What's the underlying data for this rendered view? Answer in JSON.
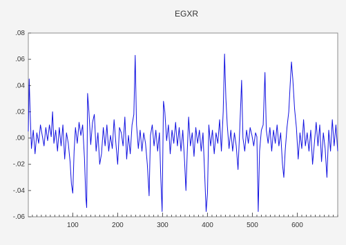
{
  "chart_data": {
    "type": "line",
    "title": "EGXR",
    "xlabel": "",
    "ylabel": "",
    "xlim": [
      1,
      690
    ],
    "ylim": [
      -0.06,
      0.08
    ],
    "grid": false,
    "legend": "none",
    "x_ticks": [
      100,
      200,
      300,
      400,
      500,
      600
    ],
    "x_tick_labels": [
      "100",
      "200",
      "300",
      "400",
      "500",
      "600"
    ],
    "y_ticks": [
      0.08,
      0.06,
      0.04,
      0.02,
      0.0,
      -0.02,
      -0.04,
      -0.06
    ],
    "y_tick_labels": [
      ".08",
      ".06",
      ".04",
      ".02",
      ".00",
      "-.02",
      "-.04",
      "-.06"
    ],
    "series": [
      {
        "color": "#1010e0",
        "points": [
          [
            1,
            0.005
          ],
          [
            3,
            0.045
          ],
          [
            5,
            0.02
          ],
          [
            8,
            -0.008
          ],
          [
            12,
            0.006
          ],
          [
            16,
            -0.012
          ],
          [
            20,
            0.004
          ],
          [
            24,
            -0.004
          ],
          [
            28,
            0.01
          ],
          [
            32,
            0.002
          ],
          [
            36,
            -0.006
          ],
          [
            40,
            0.008
          ],
          [
            44,
            -0.002
          ],
          [
            48,
            0.01
          ],
          [
            52,
            0.001
          ],
          [
            55,
            0.02
          ],
          [
            58,
            -0.004
          ],
          [
            62,
            0.006
          ],
          [
            66,
            -0.01
          ],
          [
            70,
            0.008
          ],
          [
            74,
            -0.006
          ],
          [
            78,
            0.01
          ],
          [
            82,
            -0.016
          ],
          [
            86,
            0.004
          ],
          [
            90,
            -0.004
          ],
          [
            94,
            -0.018
          ],
          [
            97,
            -0.035
          ],
          [
            100,
            -0.042
          ],
          [
            103,
            -0.01
          ],
          [
            106,
            0.008
          ],
          [
            110,
            -0.004
          ],
          [
            114,
            0.012
          ],
          [
            118,
            0.002
          ],
          [
            122,
            0.01
          ],
          [
            126,
            -0.015
          ],
          [
            129,
            -0.045
          ],
          [
            131,
            -0.053
          ],
          [
            133,
            0.034
          ],
          [
            136,
            0.02
          ],
          [
            140,
            -0.005
          ],
          [
            144,
            0.012
          ],
          [
            148,
            0.018
          ],
          [
            152,
            -0.01
          ],
          [
            156,
            0.004
          ],
          [
            160,
            -0.02
          ],
          [
            164,
            -0.012
          ],
          [
            168,
            0.008
          ],
          [
            172,
            -0.006
          ],
          [
            176,
            0.01
          ],
          [
            180,
            -0.01
          ],
          [
            184,
            0.002
          ],
          [
            188,
            -0.008
          ],
          [
            192,
            0.014
          ],
          [
            196,
            -0.004
          ],
          [
            200,
            -0.02
          ],
          [
            204,
            0.008
          ],
          [
            208,
            0.004
          ],
          [
            212,
            -0.006
          ],
          [
            216,
            0.016
          ],
          [
            220,
            -0.016
          ],
          [
            224,
            0.002
          ],
          [
            228,
            -0.012
          ],
          [
            232,
            0.01
          ],
          [
            236,
            0.018
          ],
          [
            239,
            0.063
          ],
          [
            242,
            0.01
          ],
          [
            246,
            -0.008
          ],
          [
            250,
            0.006
          ],
          [
            254,
            -0.01
          ],
          [
            258,
            0.004
          ],
          [
            262,
            -0.004
          ],
          [
            266,
            -0.02
          ],
          [
            270,
            -0.044
          ],
          [
            273,
            0.002
          ],
          [
            277,
            0.01
          ],
          [
            281,
            -0.006
          ],
          [
            285,
            0.006
          ],
          [
            289,
            -0.01
          ],
          [
            293,
            0.004
          ],
          [
            296,
            -0.03
          ],
          [
            299,
            -0.056
          ],
          [
            302,
            0.028
          ],
          [
            305,
            0.02
          ],
          [
            309,
            -0.002
          ],
          [
            313,
            0.01
          ],
          [
            317,
            -0.012
          ],
          [
            321,
            0.006
          ],
          [
            325,
            -0.004
          ],
          [
            329,
            0.012
          ],
          [
            333,
            -0.006
          ],
          [
            337,
            0.008
          ],
          [
            341,
            -0.01
          ],
          [
            345,
            0.006
          ],
          [
            349,
            -0.018
          ],
          [
            352,
            -0.04
          ],
          [
            355,
            -0.01
          ],
          [
            358,
            0.016
          ],
          [
            362,
            -0.006
          ],
          [
            366,
            0.004
          ],
          [
            370,
            -0.014
          ],
          [
            374,
            0.008
          ],
          [
            378,
            -0.004
          ],
          [
            382,
            0.006
          ],
          [
            386,
            -0.01
          ],
          [
            390,
            0.004
          ],
          [
            394,
            -0.03
          ],
          [
            397,
            -0.056
          ],
          [
            400,
            -0.042
          ],
          [
            403,
            0.01
          ],
          [
            407,
            -0.006
          ],
          [
            411,
            0.006
          ],
          [
            415,
            -0.012
          ],
          [
            419,
            0.004
          ],
          [
            423,
            -0.004
          ],
          [
            427,
            0.014
          ],
          [
            431,
            -0.01
          ],
          [
            435,
            0.02
          ],
          [
            438,
            0.064
          ],
          [
            441,
            0.03
          ],
          [
            444,
            0.01
          ],
          [
            448,
            -0.008
          ],
          [
            452,
            0.006
          ],
          [
            456,
            -0.01
          ],
          [
            460,
            0.004
          ],
          [
            464,
            -0.006
          ],
          [
            468,
            -0.024
          ],
          [
            472,
            0.008
          ],
          [
            476,
            0.044
          ],
          [
            479,
            0.0
          ],
          [
            483,
            -0.01
          ],
          [
            487,
            0.006
          ],
          [
            491,
            -0.004
          ],
          [
            495,
            0.008
          ],
          [
            499,
            0.002
          ],
          [
            503,
            -0.006
          ],
          [
            507,
            0.004
          ],
          [
            510,
            0.001
          ],
          [
            513,
            -0.056
          ],
          [
            516,
            -0.01
          ],
          [
            520,
            0.006
          ],
          [
            524,
            0.01
          ],
          [
            528,
            0.05
          ],
          [
            531,
            0.006
          ],
          [
            535,
            -0.004
          ],
          [
            539,
            0.008
          ],
          [
            543,
            -0.01
          ],
          [
            547,
            0.006
          ],
          [
            551,
            -0.004
          ],
          [
            555,
            0.01
          ],
          [
            559,
            -0.006
          ],
          [
            563,
            0.004
          ],
          [
            567,
            -0.02
          ],
          [
            570,
            -0.03
          ],
          [
            573,
            -0.01
          ],
          [
            577,
            0.008
          ],
          [
            581,
            0.02
          ],
          [
            584,
            0.04
          ],
          [
            587,
            0.058
          ],
          [
            590,
            0.045
          ],
          [
            594,
            0.022
          ],
          [
            598,
            0.008
          ],
          [
            602,
            -0.016
          ],
          [
            606,
            0.004
          ],
          [
            610,
            -0.008
          ],
          [
            614,
            0.014
          ],
          [
            618,
            -0.006
          ],
          [
            622,
            0.004
          ],
          [
            626,
            -0.01
          ],
          [
            630,
            0.006
          ],
          [
            634,
            -0.02
          ],
          [
            638,
            -0.004
          ],
          [
            642,
            0.012
          ],
          [
            646,
            -0.006
          ],
          [
            650,
            0.01
          ],
          [
            654,
            -0.018
          ],
          [
            658,
            0.004
          ],
          [
            662,
            -0.008
          ],
          [
            666,
            -0.03
          ],
          [
            670,
            0.006
          ],
          [
            674,
            -0.01
          ],
          [
            678,
            0.014
          ],
          [
            682,
            -0.006
          ],
          [
            686,
            0.01
          ],
          [
            690,
            -0.01
          ]
        ]
      }
    ]
  }
}
